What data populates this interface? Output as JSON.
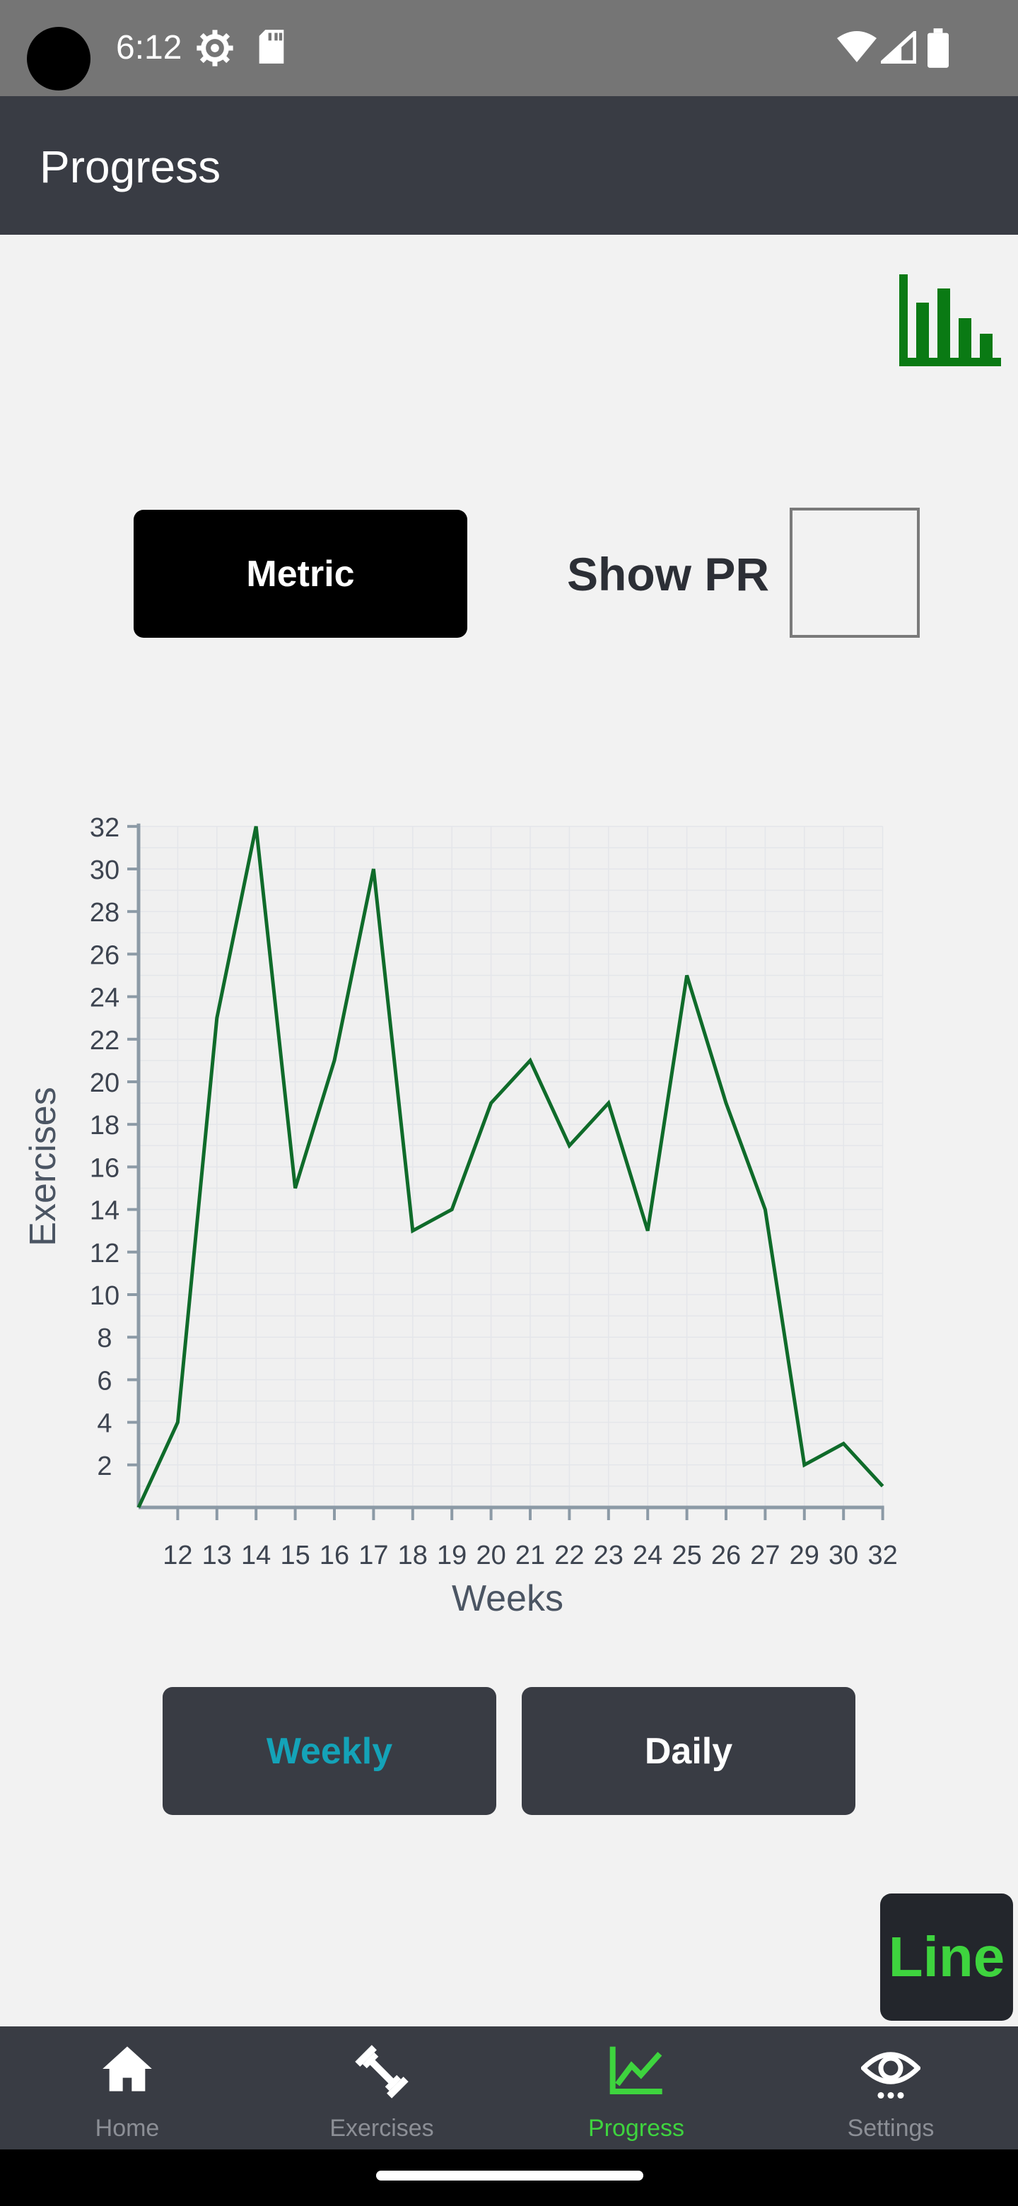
{
  "status_bar": {
    "time": "6:12"
  },
  "header": {
    "title": "Progress"
  },
  "controls": {
    "metric_label": "Metric",
    "show_pr_label": "Show PR"
  },
  "range_buttons": {
    "weekly": "Weekly",
    "daily": "Daily"
  },
  "chart_toggle": {
    "label": "Line"
  },
  "colors": {
    "line": "#0f6b2a",
    "active_nav": "#3ed43e",
    "weekly_text": "#14a3b8",
    "header_bg": "#393c44"
  },
  "bottom_nav": {
    "items": [
      {
        "label": "Home",
        "icon": "home-icon"
      },
      {
        "label": "Exercises",
        "icon": "dumbbell-icon"
      },
      {
        "label": "Progress",
        "icon": "chart-line-icon"
      },
      {
        "label": "Settings",
        "icon": "eye-icon"
      }
    ],
    "active": "Progress"
  },
  "chart_data": {
    "type": "line",
    "xlabel": "Weeks",
    "ylabel": "Exercises",
    "x": [
      "",
      "12",
      "13",
      "14",
      "15",
      "16",
      "17",
      "18",
      "19",
      "20",
      "21",
      "22",
      "23",
      "24",
      "25",
      "26",
      "27",
      "29",
      "30",
      "32"
    ],
    "values": [
      0,
      4,
      23,
      32,
      15,
      21,
      30,
      13,
      14,
      19,
      21,
      17,
      19,
      13,
      25,
      19,
      14,
      2,
      3,
      1
    ],
    "yticks": [
      2,
      4,
      6,
      8,
      10,
      12,
      14,
      16,
      18,
      20,
      22,
      24,
      26,
      28,
      30,
      32
    ],
    "ylim": [
      0,
      32
    ],
    "grid": true
  }
}
